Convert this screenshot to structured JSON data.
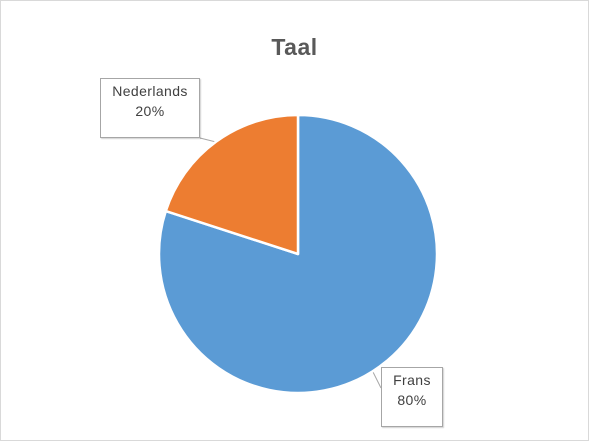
{
  "chart_data": {
    "type": "pie",
    "title": "Taal",
    "slices": [
      {
        "label": "Frans",
        "value": 80,
        "value_label": "80%",
        "color": "#5b9bd5"
      },
      {
        "label": "Nederlands",
        "value": 20,
        "value_label": "20%",
        "color": "#ed7d31"
      }
    ],
    "start_angle_deg": 0,
    "direction": "clockwise",
    "legend": "none",
    "data_labels": "callout"
  }
}
